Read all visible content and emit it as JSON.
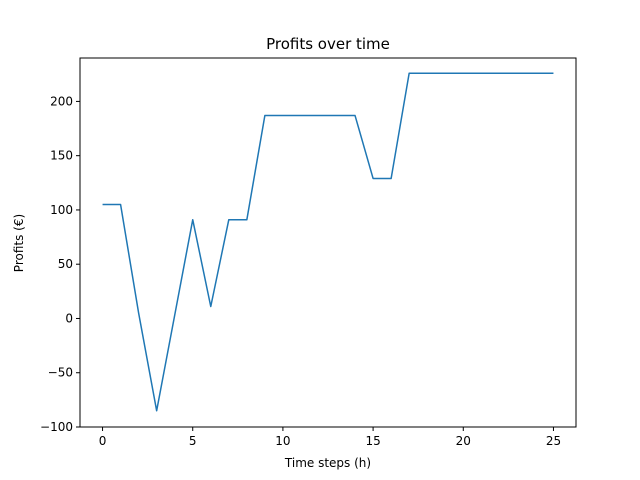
{
  "chart_data": {
    "type": "line",
    "title": "Profits over time",
    "xlabel": "Time steps (h)",
    "ylabel": "Profits (€)",
    "xlim": [
      -1.25,
      26.25
    ],
    "ylim": [
      -100,
      240
    ],
    "xticks": [
      0,
      5,
      10,
      15,
      20,
      25
    ],
    "yticks": [
      -100,
      -50,
      0,
      50,
      100,
      150,
      200
    ],
    "grid": false,
    "series": [
      {
        "color": "#1f77b4",
        "x": [
          0,
          1,
          2,
          3,
          4,
          5,
          6,
          7,
          8,
          9,
          10,
          11,
          12,
          13,
          14,
          15,
          16,
          17,
          18,
          19,
          20,
          21,
          22,
          23,
          24,
          25
        ],
        "values": [
          105,
          105,
          5,
          -85,
          3,
          91,
          11,
          91,
          91,
          187,
          187,
          187,
          187,
          187,
          187,
          129,
          129,
          226,
          226,
          226,
          226,
          226,
          226,
          226,
          226,
          226
        ]
      }
    ]
  }
}
